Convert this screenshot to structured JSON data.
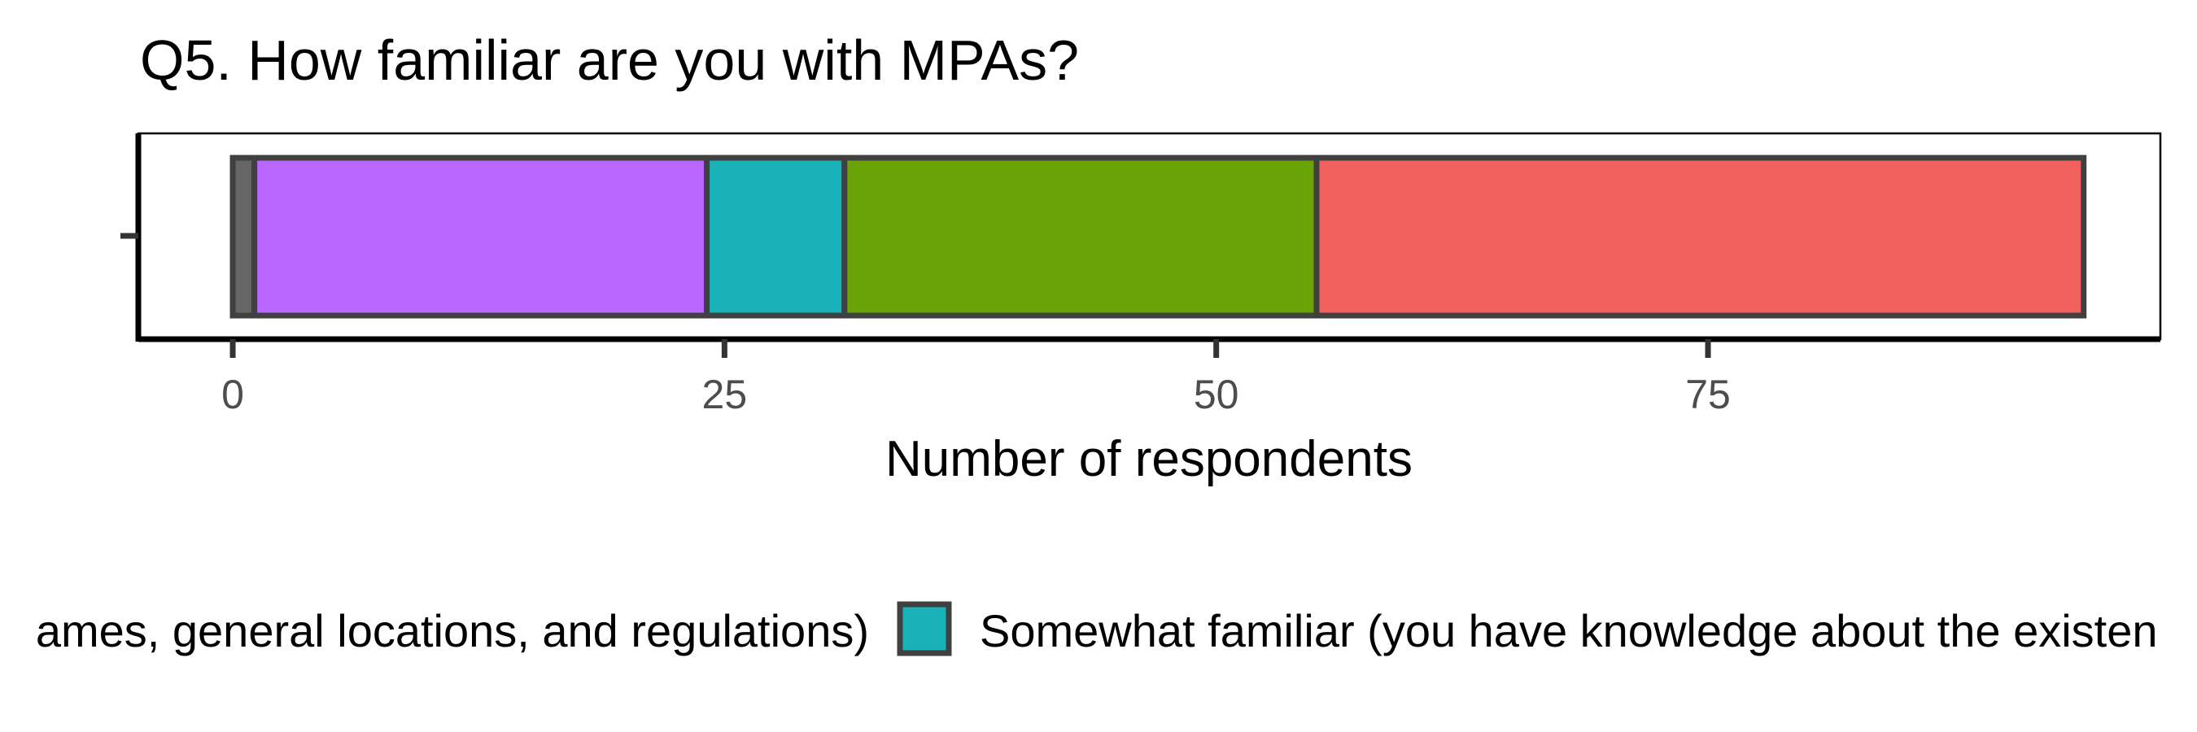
{
  "chart_data": {
    "type": "bar",
    "orientation": "horizontal",
    "stacked": true,
    "title": "Q5. How familiar are you with MPAs?",
    "xlabel": "Number of respondents",
    "ylabel": "",
    "xlim": [
      -4.8,
      98
    ],
    "x_ticks": [
      0,
      25,
      50,
      75
    ],
    "x_tick_labels": [
      "0",
      "25",
      "50",
      "75"
    ],
    "grid": false,
    "legend_position": "bottom",
    "series": [
      {
        "values": [
          1.1
        ],
        "color": "#666666"
      },
      {
        "values": [
          23
        ],
        "color": "#B866FF"
      },
      {
        "values": [
          7
        ],
        "color": "#19B2B9"
      },
      {
        "values": [
          24
        ],
        "color": "#6AA306"
      },
      {
        "values": [
          39
        ],
        "color": "#F2615E"
      }
    ],
    "legend_entries": [
      {
        "label": "ames, general locations, and regulations)",
        "color": null
      },
      {
        "label": "Somewhat familiar (you have knowledge about the existen",
        "color": "#19B2B9"
      }
    ]
  }
}
